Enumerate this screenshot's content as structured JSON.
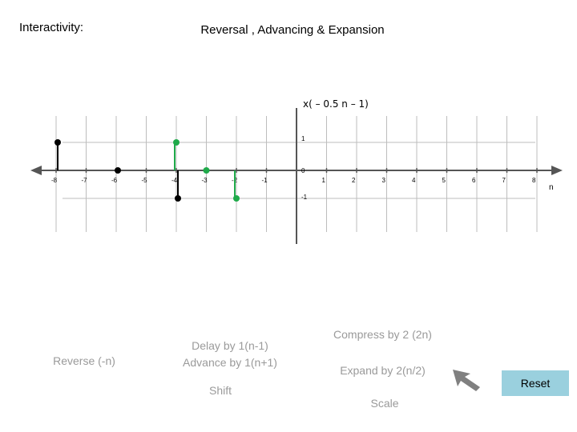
{
  "header": {
    "interactivity_label": "Interactivity:",
    "title": "Reversal , Advancing & Expansion"
  },
  "plot": {
    "function_label": "x( – 0.5 n – 1)",
    "n_axis_label": "n",
    "x_ticks": [
      "-8",
      "-7",
      "-6",
      "-5",
      "-4",
      "-3",
      "-2",
      "-1",
      "1",
      "2",
      "3",
      "4",
      "5",
      "6",
      "7",
      "8"
    ],
    "y_ticks": [
      "1",
      "0",
      "-1"
    ],
    "colors": {
      "black_signal": "#000000",
      "green_signal": "#1faa4a",
      "grid": "#bdbdbd"
    }
  },
  "chart_data": {
    "type": "scatter",
    "x_range": [
      -8,
      8
    ],
    "y_range": [
      -1,
      1
    ],
    "series": [
      {
        "stems": [
          {
            "n": -8,
            "y": 1
          },
          {
            "n": -6,
            "y": 0
          },
          {
            "n": -4,
            "y": -1
          }
        ]
      },
      {
        "stems": [
          {
            "n": -4,
            "y": 1
          },
          {
            "n": -3,
            "y": 0
          },
          {
            "n": -2,
            "y": -1
          }
        ]
      }
    ]
  },
  "controls": {
    "reverse": "Reverse (-n)",
    "delay": "Delay by 1(n-1)",
    "advance": "Advance by 1(n+1)",
    "shift": "Shift",
    "compress": "Compress by 2 (2n)",
    "expand": "Expand by 2(n/2)",
    "scale": "Scale",
    "reset": "Reset",
    "pointer_icon": "arrow-pointer-icon"
  }
}
